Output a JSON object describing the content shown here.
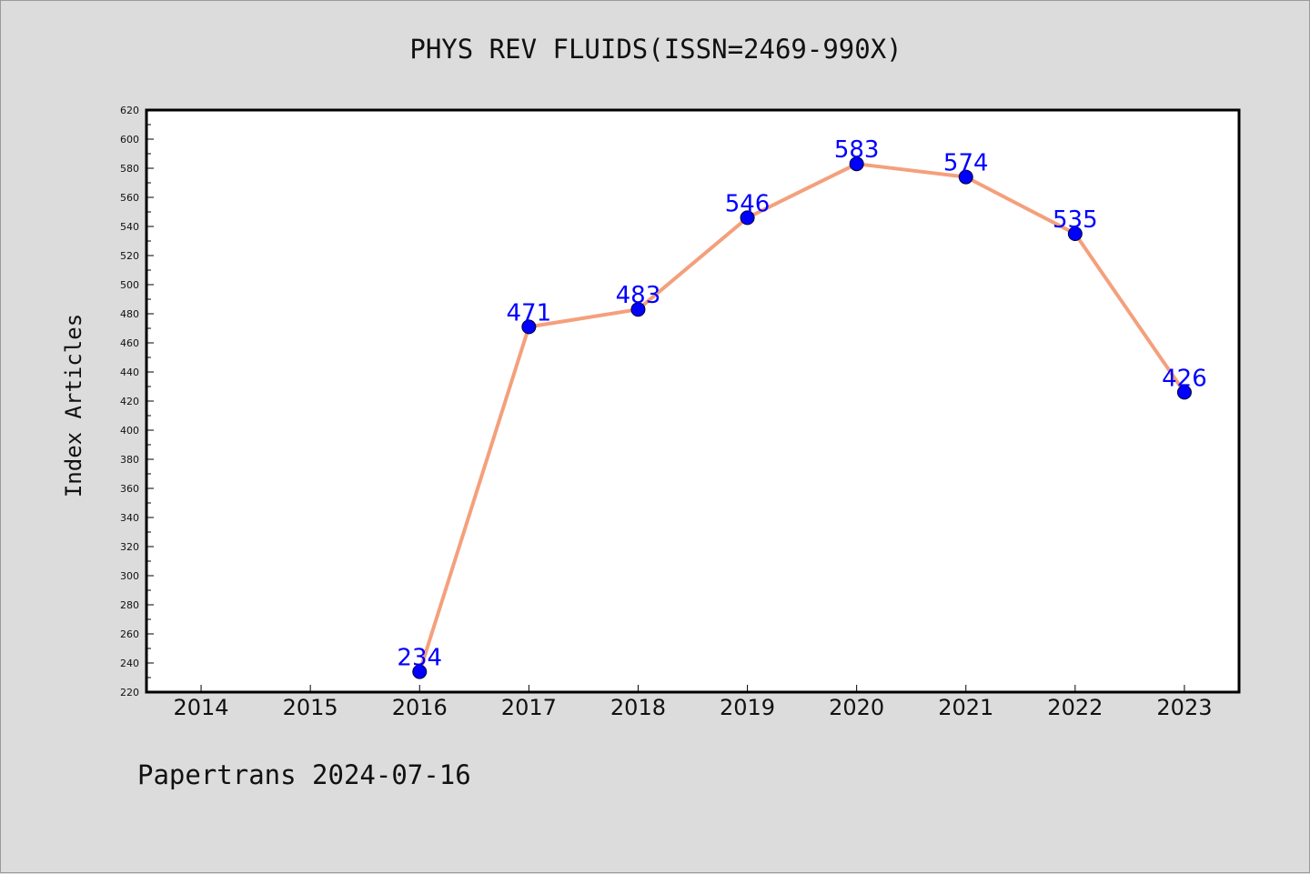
{
  "header": {
    "title": "PHYS REV FLUIDS(ISSN=2469-990X)"
  },
  "footer": {
    "note": "Papertrans 2024-07-16"
  },
  "colors": {
    "background": "#dcdcdc",
    "plot_background": "#ffffff",
    "line": "#f4a07c",
    "marker": "#0000ff",
    "data_label": "#0000ff",
    "axis": "#000000"
  },
  "chart_data": {
    "type": "line",
    "title": "PHYS REV FLUIDS(ISSN=2469-990X)",
    "xlabel": "",
    "ylabel": "Index Articles",
    "x_ticks": [
      "2014",
      "2015",
      "2016",
      "2017",
      "2018",
      "2019",
      "2020",
      "2021",
      "2022",
      "2023"
    ],
    "y_ticks": [
      220,
      240,
      260,
      280,
      300,
      320,
      340,
      360,
      380,
      400,
      420,
      440,
      460,
      480,
      500,
      520,
      540,
      560,
      580,
      600,
      620
    ],
    "ylim": [
      220,
      620
    ],
    "xlim": [
      2013.5,
      2023.5
    ],
    "grid": false,
    "legend": "none",
    "series": [
      {
        "x": [
          2016,
          2017,
          2018,
          2019,
          2020,
          2021,
          2022,
          2023
        ],
        "values": [
          234,
          471,
          483,
          546,
          583,
          574,
          535,
          426
        ],
        "labels": [
          "234",
          "471",
          "483",
          "546",
          "583",
          "574",
          "535",
          "426"
        ]
      }
    ]
  }
}
